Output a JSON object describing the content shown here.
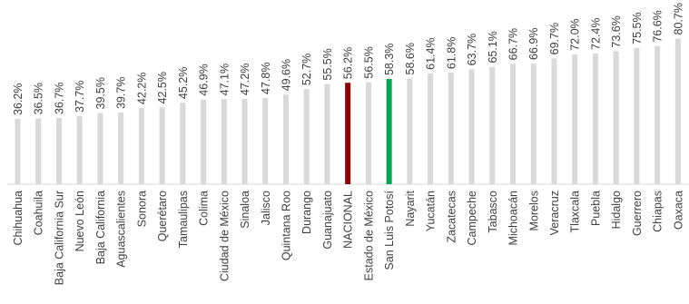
{
  "chart_data": {
    "type": "bar",
    "title": "",
    "xlabel": "",
    "ylabel": "",
    "ylim": [
      0,
      100
    ],
    "value_suffix": "%",
    "colors": {
      "default": "#d9d9d9",
      "NACIONAL": "#8b0000",
      "San Luis Potosí": "#00a651"
    },
    "categories": [
      "Chihuahua",
      "Coahuila",
      "Baja California Sur",
      "Nuevo León",
      "Baja California",
      "Aguascalientes",
      "Sonora",
      "Querétaro",
      "Tamaulipas",
      "Colima",
      "Ciudad de México",
      "Sinaloa",
      "Jalisco",
      "Quintana Roo",
      "Durango",
      "Guanajuato",
      "NACIONAL",
      "Estado de México",
      "San Luis Potosí",
      "Nayarit",
      "Yucatán",
      "Zacatecas",
      "Campeche",
      "Tabasco",
      "Michoacán",
      "Morelos",
      "Veracruz",
      "Tlaxcala",
      "Puebla",
      "Hidalgo",
      "Guerrero",
      "Chiapas",
      "Oaxaca"
    ],
    "values": [
      36.2,
      36.5,
      36.7,
      37.7,
      39.5,
      39.7,
      42.2,
      42.5,
      45.2,
      46.9,
      47.1,
      47.2,
      47.8,
      49.6,
      52.7,
      55.5,
      56.2,
      56.5,
      58.3,
      58.6,
      61.4,
      61.8,
      63.7,
      65.1,
      66.7,
      66.9,
      69.7,
      72.0,
      72.4,
      73.6,
      75.5,
      76.6,
      80.7
    ],
    "value_labels": [
      "36.2%",
      "36.5%",
      "36.7%",
      "37.7%",
      "39.5%",
      "39.7%",
      "42.2%",
      "42.5%",
      "45.2%",
      "46.9%",
      "47.1%",
      "47.2%",
      "47.8%",
      "49.6%",
      "52.7%",
      "55.5%",
      "56.2%",
      "56.5%",
      "58.3%",
      "58.6%",
      "61.4%",
      "61.8%",
      "63.7%",
      "65.1%",
      "66.7%",
      "66.9%",
      "69.7%",
      "72.0%",
      "72.4%",
      "73.6%",
      "75.5%",
      "76.6%",
      "80.7%"
    ]
  }
}
